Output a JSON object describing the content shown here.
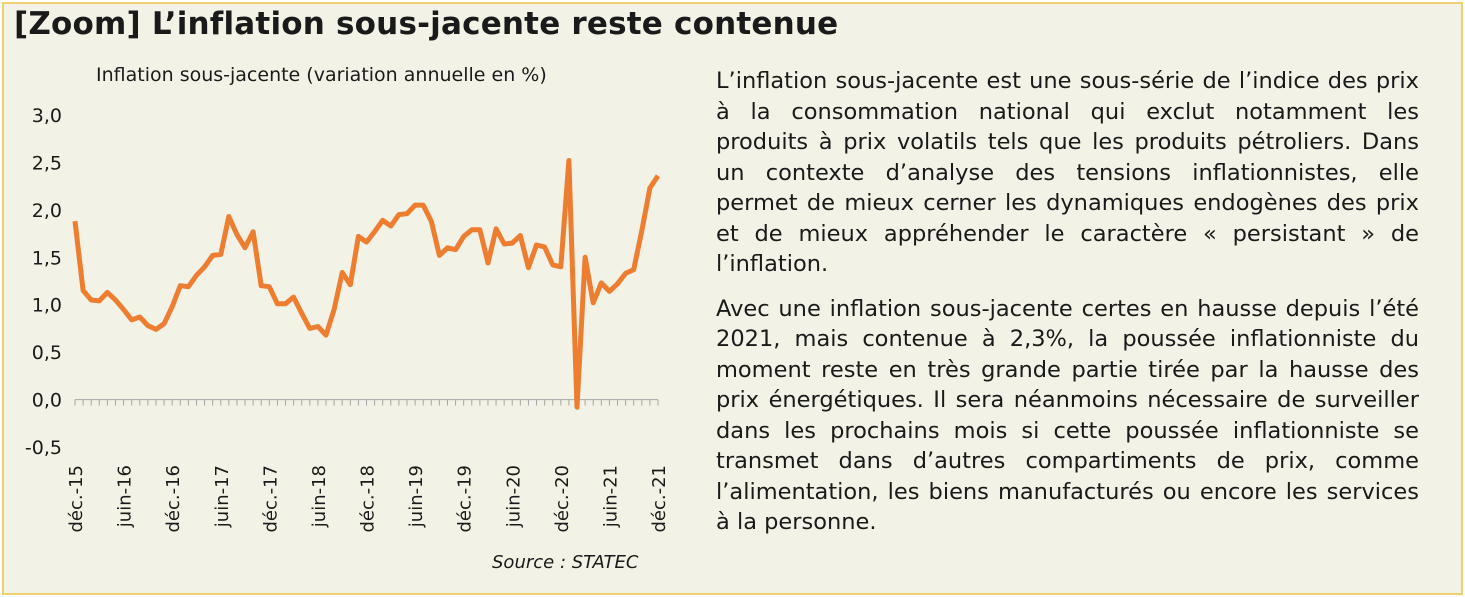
{
  "title": "[Zoom] L’inflation sous-jacente reste contenue",
  "source": "Source : STATEC",
  "paragraphs": [
    "L’inflation sous-jacente est une sous-série de l’indice des prix à la consommation national qui exclut notamment les produits à prix volatils tels que les produits pétroliers. Dans un contexte d’analyse des tensions inflationnistes, elle permet de mieux cerner les dynamiques endogènes des prix et de mieux appréhender le caractère « persistant » de l’inflation.",
    "Avec une inflation sous-jacente certes en hausse depuis l’été 2021, mais contenue à 2,3%, la poussée inflationniste du moment reste en très grande partie tirée par la hausse des prix énergétiques. Il sera néanmoins nécessaire de surveiller dans les prochains mois si cette poussée inflationniste se transmet dans d’autres compartiments de prix, comme l’alimentation, les biens manufacturés ou encore les services à la personne."
  ],
  "colors": {
    "line": "#ed7d31",
    "frame_border": "#f0d070",
    "frame_bg": "#f2f2e6"
  },
  "chart_data": {
    "type": "line",
    "title": "Inflation sous-jacente (variation annuelle en %)",
    "xlabel": "",
    "ylabel": "",
    "ylim": [
      -0.5,
      3.0
    ],
    "ytick_values": [
      -0.5,
      0.0,
      0.5,
      1.0,
      1.5,
      2.0,
      2.5,
      3.0
    ],
    "ytick_labels": [
      "-0,5",
      "0,0",
      "0,5",
      "1,0",
      "1,5",
      "2,0",
      "2,5",
      "3,0"
    ],
    "xtick_labels": [
      "déc.-15",
      "juin-16",
      "déc.-16",
      "juin-17",
      "déc.-17",
      "juin-18",
      "déc.-18",
      "juin-19",
      "déc.-19",
      "juin-20",
      "déc.-20",
      "juin-21",
      "déc.-21"
    ],
    "grid": false,
    "legend": "none",
    "series": [
      {
        "x": [
          "2015-12",
          "2016-01",
          "2016-02",
          "2016-03",
          "2016-04",
          "2016-05",
          "2016-06",
          "2016-07",
          "2016-08",
          "2016-09",
          "2016-10",
          "2016-11",
          "2016-12",
          "2017-01",
          "2017-02",
          "2017-03",
          "2017-04",
          "2017-05",
          "2017-06",
          "2017-07",
          "2017-08",
          "2017-09",
          "2017-10",
          "2017-11",
          "2017-12",
          "2018-01",
          "2018-02",
          "2018-03",
          "2018-04",
          "2018-05",
          "2018-06",
          "2018-07",
          "2018-08",
          "2018-09",
          "2018-10",
          "2018-11",
          "2018-12",
          "2019-01",
          "2019-02",
          "2019-03",
          "2019-04",
          "2019-05",
          "2019-06",
          "2019-07",
          "2019-08",
          "2019-09",
          "2019-10",
          "2019-11",
          "2019-12",
          "2020-01",
          "2020-02",
          "2020-03",
          "2020-04",
          "2020-05",
          "2020-06",
          "2020-07",
          "2020-08",
          "2020-09",
          "2020-10",
          "2020-11",
          "2020-12",
          "2021-01",
          "2021-02",
          "2021-03",
          "2021-04",
          "2021-05",
          "2021-06",
          "2021-07",
          "2021-08",
          "2021-09",
          "2021-10",
          "2021-11",
          "2021-12"
        ],
        "values": [
          1.88,
          1.15,
          1.05,
          1.04,
          1.13,
          1.05,
          0.95,
          0.84,
          0.87,
          0.78,
          0.74,
          0.8,
          0.98,
          1.2,
          1.19,
          1.31,
          1.4,
          1.52,
          1.53,
          1.93,
          1.74,
          1.6,
          1.77,
          1.2,
          1.19,
          1.01,
          1.01,
          1.08,
          0.91,
          0.75,
          0.77,
          0.68,
          0.95,
          1.34,
          1.21,
          1.72,
          1.66,
          1.77,
          1.89,
          1.83,
          1.95,
          1.96,
          2.05,
          2.05,
          1.88,
          1.52,
          1.6,
          1.58,
          1.72,
          1.79,
          1.79,
          1.44,
          1.8,
          1.64,
          1.65,
          1.73,
          1.39,
          1.63,
          1.61,
          1.42,
          1.4,
          2.52,
          -0.08,
          1.5,
          1.02,
          1.23,
          1.14,
          1.22,
          1.33,
          1.37,
          1.78,
          2.23,
          2.36
        ]
      }
    ]
  }
}
